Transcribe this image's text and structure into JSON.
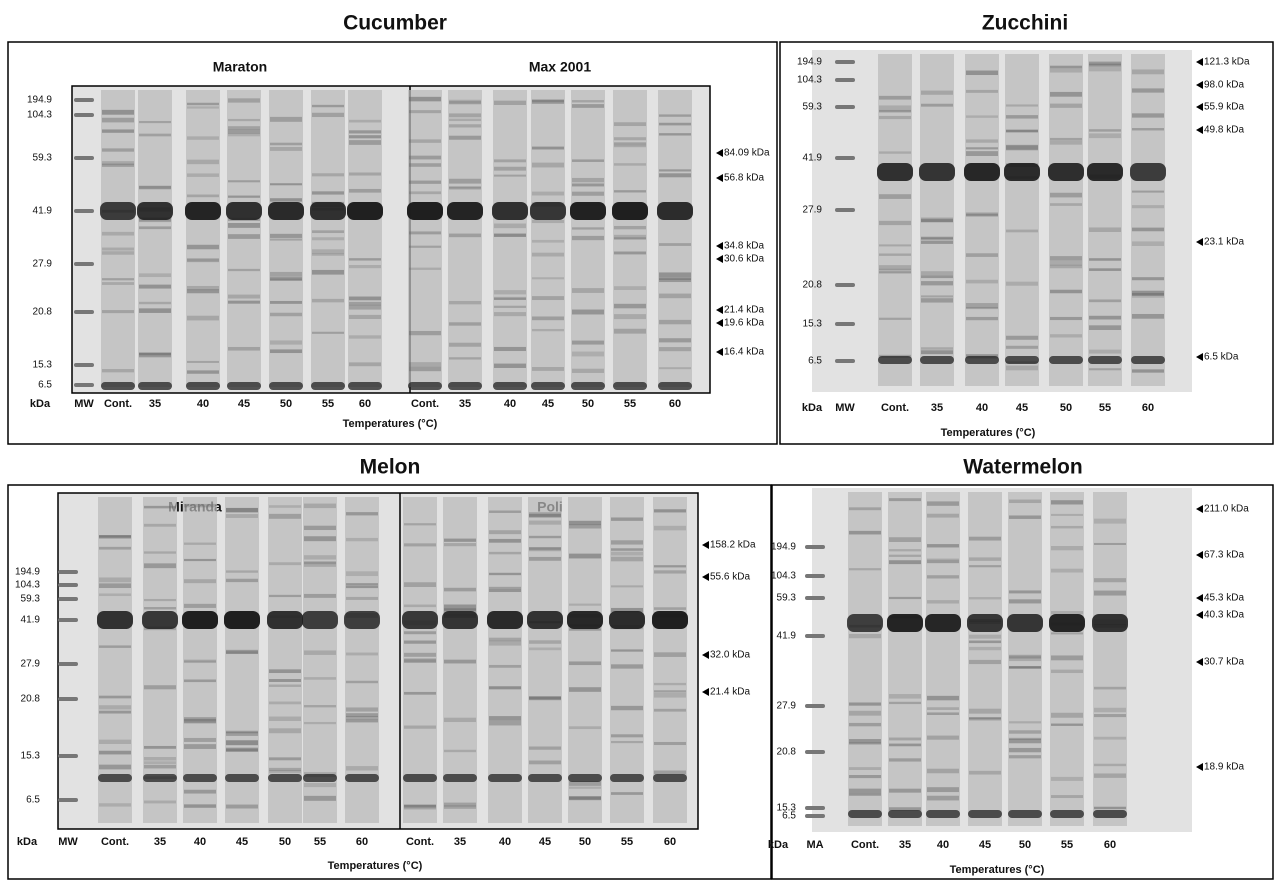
{
  "panels": [
    {
      "title": "Cucumber",
      "gels": [
        "Maraton",
        "Max 2001"
      ],
      "mw_labels": [
        "194.9",
        "104.3",
        "59.3",
        "41.9",
        "27.9",
        "20.8",
        "15.3",
        "6.5"
      ],
      "markers": [
        "84.09 kDa",
        "56.8 kDa",
        "34.8 kDa",
        "30.6 kDa",
        "21.4 kDa",
        "19.6 kDa",
        "16.4 kDa"
      ],
      "unit": "kDa",
      "ladder": "MW",
      "lanes": [
        "Cont.",
        "35",
        "40",
        "45",
        "50",
        "55",
        "60",
        "Cont.",
        "35",
        "40",
        "45",
        "50",
        "55",
        "60"
      ],
      "axis_label": "Temperatures (°C)"
    },
    {
      "title": "Zucchini",
      "gels": [],
      "mw_labels": [
        "194.9",
        "104.3",
        "59.3",
        "41.9",
        "27.9",
        "20.8",
        "15.3",
        "6.5"
      ],
      "markers": [
        "121.3 kDa",
        "98.0 kDa",
        "55.9 kDa",
        "49.8 kDa",
        "23.1 kDa",
        "6.5 kDa"
      ],
      "unit": "kDa",
      "ladder": "MW",
      "lanes": [
        "Cont.",
        "35",
        "40",
        "45",
        "50",
        "55",
        "60"
      ],
      "axis_label": "Temperatures (°C)"
    },
    {
      "title": "Melon",
      "gels": [
        "Miranda",
        "Poli"
      ],
      "mw_labels": [
        "194.9",
        "104.3",
        "59.3",
        "41.9",
        "27.9",
        "20.8",
        "15.3",
        "6.5"
      ],
      "markers": [
        "158.2 kDa",
        "55.6 kDa",
        "32.0 kDa",
        "21.4 kDa"
      ],
      "unit": "kDa",
      "ladder": "MW",
      "lanes": [
        "Cont.",
        "35",
        "40",
        "45",
        "50",
        "55",
        "60",
        "Cont.",
        "35",
        "40",
        "45",
        "50",
        "55",
        "60"
      ],
      "axis_label": "Temperatures (°C)"
    },
    {
      "title": "Watermelon",
      "gels": [],
      "mw_labels": [
        "194.9",
        "104.3",
        "59.3",
        "41.9",
        "27.9",
        "20.8",
        "15.3",
        "6.5"
      ],
      "markers": [
        "211.0 kDa",
        "67.3 kDa",
        "45.3 kDa",
        "40.3 kDa",
        "30.7 kDa",
        "18.9 kDa"
      ],
      "unit": "kDa",
      "ladder": "MA",
      "lanes": [
        "Cont.",
        "35",
        "40",
        "45",
        "50",
        "55",
        "60"
      ],
      "axis_label": "Temperatures (°C)"
    }
  ]
}
